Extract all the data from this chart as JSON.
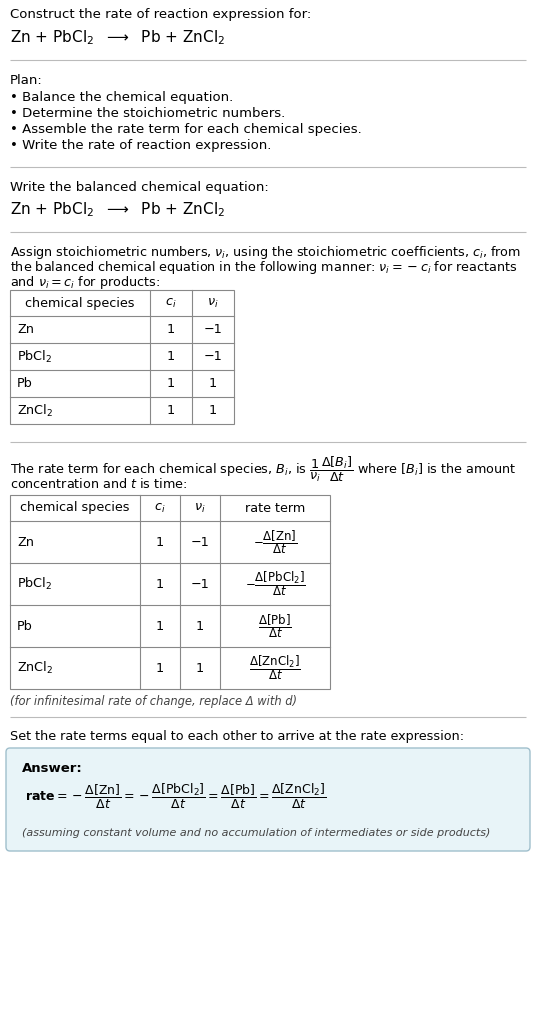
{
  "title_line1": "Construct the rate of reaction expression for:",
  "plan_header": "Plan:",
  "plan_items": [
    "• Balance the chemical equation.",
    "• Determine the stoichiometric numbers.",
    "• Assemble the rate term for each chemical species.",
    "• Write the rate of reaction expression."
  ],
  "balanced_header": "Write the balanced chemical equation:",
  "table1_headers": [
    "chemical species",
    "c_i",
    "v_i"
  ],
  "table1_rows": [
    [
      "Zn",
      "1",
      "−1"
    ],
    [
      "PbCl2",
      "1",
      "−1"
    ],
    [
      "Pb",
      "1",
      "1"
    ],
    [
      "ZnCl2",
      "1",
      "1"
    ]
  ],
  "table2_headers": [
    "chemical species",
    "c_i",
    "v_i",
    "rate term"
  ],
  "table2_rows": [
    [
      "Zn",
      "1",
      "−1",
      "rt_zn"
    ],
    [
      "PbCl2",
      "1",
      "−1",
      "rt_pbcl2"
    ],
    [
      "Pb",
      "1",
      "1",
      "rt_pb"
    ],
    [
      "ZnCl2",
      "1",
      "1",
      "rt_zncl2"
    ]
  ],
  "infinitesimal_note": "(for infinitesimal rate of change, replace Δ with d)",
  "set_equal_text": "Set the rate terms equal to each other to arrive at the rate expression:",
  "answer_label": "Answer:",
  "assumption_note": "(assuming constant volume and no accumulation of intermediates or side products)",
  "bg_color": "#ffffff",
  "answer_bg_color": "#e8f4f8",
  "answer_border_color": "#a0bfcc",
  "text_color": "#000000",
  "separator_color": "#bbbbbb",
  "table_border_color": "#888888",
  "fig_width": 5.36,
  "fig_height": 10.22,
  "dpi": 100
}
